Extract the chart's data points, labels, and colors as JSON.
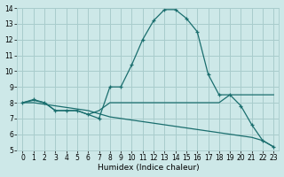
{
  "title": "",
  "xlabel": "Humidex (Indice chaleur)",
  "background_color": "#cde8e8",
  "grid_color": "#a8cccc",
  "line_color": "#1a6e6e",
  "xlim": [
    -0.5,
    23.5
  ],
  "ylim": [
    5,
    14
  ],
  "xticks": [
    0,
    1,
    2,
    3,
    4,
    5,
    6,
    7,
    8,
    9,
    10,
    11,
    12,
    13,
    14,
    15,
    16,
    17,
    18,
    19,
    20,
    21,
    22,
    23
  ],
  "yticks": [
    5,
    6,
    7,
    8,
    9,
    10,
    11,
    12,
    13,
    14
  ],
  "line1_x": [
    0,
    1,
    2,
    3,
    4,
    5,
    6,
    7,
    8,
    9,
    10,
    11,
    12,
    13,
    14,
    15,
    16,
    17,
    18,
    19,
    20,
    21,
    22,
    23
  ],
  "line1_y": [
    8.0,
    8.2,
    8.0,
    7.5,
    7.5,
    7.5,
    7.25,
    7.0,
    9.0,
    9.0,
    10.4,
    12.0,
    13.2,
    13.9,
    13.9,
    13.35,
    12.5,
    9.8,
    8.5,
    8.5,
    7.8,
    6.6,
    5.6,
    5.2
  ],
  "line2_x": [
    0,
    1,
    2,
    3,
    4,
    5,
    6,
    7,
    8,
    9,
    10,
    11,
    12,
    13,
    14,
    15,
    16,
    17,
    18,
    19,
    20,
    21,
    22,
    23
  ],
  "line2_y": [
    8.0,
    8.15,
    8.0,
    7.5,
    7.5,
    7.5,
    7.25,
    7.5,
    8.0,
    8.0,
    8.0,
    8.0,
    8.0,
    8.0,
    8.0,
    8.0,
    8.0,
    8.0,
    8.0,
    8.5,
    8.5,
    8.5,
    8.5,
    8.5
  ],
  "line3_x": [
    0,
    1,
    2,
    3,
    4,
    5,
    6,
    7,
    8,
    9,
    10,
    11,
    12,
    13,
    14,
    15,
    16,
    17,
    18,
    19,
    20,
    21,
    22,
    23
  ],
  "line3_y": [
    8.0,
    8.0,
    7.9,
    7.8,
    7.7,
    7.6,
    7.5,
    7.3,
    7.1,
    7.0,
    6.9,
    6.8,
    6.7,
    6.6,
    6.5,
    6.4,
    6.3,
    6.2,
    6.1,
    6.0,
    5.9,
    5.8,
    5.6,
    5.2
  ]
}
